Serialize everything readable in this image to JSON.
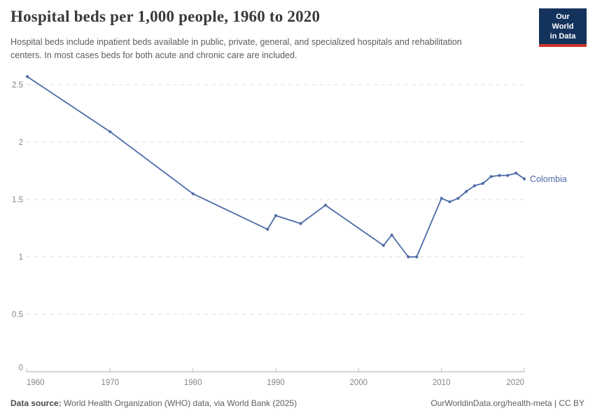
{
  "header": {
    "title": "Hospital beds per 1,000 people, 1960 to 2020",
    "subtitle": "Hospital beds include inpatient beds available in public, private, general, and specialized hospitals and rehabilitation centers. In most cases beds for both acute and chronic care are included.",
    "logo": {
      "line1": "Our World",
      "line2": "in Data"
    }
  },
  "chart_data": {
    "type": "line",
    "title": "Hospital beds per 1,000 people, 1960 to 2020",
    "xlabel": "",
    "ylabel": "",
    "xlim": [
      1960,
      2020
    ],
    "ylim": [
      0,
      2.5
    ],
    "x_ticks": [
      1960,
      1970,
      1980,
      1990,
      2000,
      2010,
      2020
    ],
    "y_ticks": [
      0,
      0.5,
      1,
      1.5,
      2,
      2.5
    ],
    "grid": "horizontal-dashed",
    "legend_position": "end-of-line",
    "series": [
      {
        "name": "Colombia",
        "color": "#4d6ba7",
        "points": [
          [
            1960,
            2.57
          ],
          [
            1970,
            2.09
          ],
          [
            1980,
            1.55
          ],
          [
            1989,
            1.24
          ],
          [
            1990,
            1.36
          ],
          [
            1993,
            1.29
          ],
          [
            1996,
            1.45
          ],
          [
            2003,
            1.1
          ],
          [
            2004,
            1.19
          ],
          [
            2006,
            1.0
          ],
          [
            2007,
            1.0
          ],
          [
            2010,
            1.51
          ],
          [
            2011,
            1.48
          ],
          [
            2012,
            1.51
          ],
          [
            2013,
            1.57
          ],
          [
            2014,
            1.62
          ],
          [
            2015,
            1.64
          ],
          [
            2016,
            1.7
          ],
          [
            2017,
            1.71
          ],
          [
            2018,
            1.71
          ],
          [
            2019,
            1.73
          ],
          [
            2020,
            1.68
          ]
        ]
      }
    ]
  },
  "footer": {
    "source_label": "Data source:",
    "source_text": "World Health Organization (WHO) data, via World Bank (2025)",
    "right_text": "OurWorldinData.org/health-meta | CC BY"
  },
  "colors": {
    "line": "#4d6ba7",
    "grid": "#dcdcdc",
    "axis": "#a8a8a8",
    "tick": "#bdbdbd",
    "tick_label": "#858585",
    "title": "#3a3a3a",
    "subtitle": "#5c5c5c",
    "logo_bg": "#14335c",
    "logo_stripe": "#d0342c"
  }
}
